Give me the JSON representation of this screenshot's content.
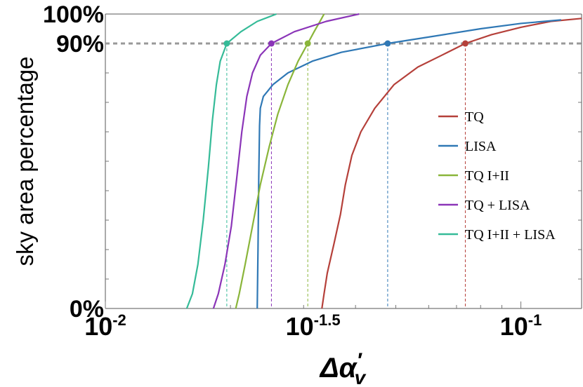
{
  "chart_data": {
    "type": "line",
    "xscale": "log",
    "xlim": [
      0.01,
      0.14
    ],
    "ylim": [
      0,
      100
    ],
    "xlabel_main": "Δα",
    "xlabel_prime": "′",
    "xlabel_sub": "v",
    "ylabel": "sky area percentage",
    "x_ticks": [
      {
        "value": 0.01,
        "base": "10",
        "exp": "-2"
      },
      {
        "value": 0.0316,
        "base": "10",
        "exp": "-1.5"
      },
      {
        "value": 0.1,
        "base": "10",
        "exp": "-1"
      }
    ],
    "y_ticks": [
      {
        "value": 0,
        "label": "0%"
      },
      {
        "value": 90,
        "label": "90%"
      },
      {
        "value": 100,
        "label": "100%"
      }
    ],
    "reference_line": {
      "y": 90,
      "color": "#999999"
    },
    "legend_position": "right",
    "series": [
      {
        "name": "TQ",
        "color": "#b5403a",
        "marker": {
          "x": 0.0735,
          "y": 90
        },
        "points": [
          [
            0.0332,
            0
          ],
          [
            0.0336,
            5
          ],
          [
            0.0342,
            12
          ],
          [
            0.0355,
            22
          ],
          [
            0.0368,
            32
          ],
          [
            0.0378,
            42
          ],
          [
            0.0392,
            52
          ],
          [
            0.0412,
            60
          ],
          [
            0.0445,
            68
          ],
          [
            0.0495,
            76
          ],
          [
            0.0565,
            82
          ],
          [
            0.0645,
            86
          ],
          [
            0.0735,
            90
          ],
          [
            0.085,
            93
          ],
          [
            0.1,
            95.5
          ],
          [
            0.118,
            97.5
          ],
          [
            0.14,
            98.5
          ]
        ]
      },
      {
        "name": "LISA",
        "color": "#2f78b5",
        "marker": {
          "x": 0.0478,
          "y": 90
        },
        "points": [
          [
            0.0232,
            0
          ],
          [
            0.0233,
            20
          ],
          [
            0.0234,
            45
          ],
          [
            0.0235,
            62
          ],
          [
            0.0236,
            68
          ],
          [
            0.024,
            72
          ],
          [
            0.0253,
            76
          ],
          [
            0.0275,
            80
          ],
          [
            0.0315,
            84
          ],
          [
            0.037,
            87
          ],
          [
            0.0478,
            90
          ],
          [
            0.062,
            92.5
          ],
          [
            0.08,
            95
          ],
          [
            0.1,
            96.8
          ],
          [
            0.125,
            98
          ]
        ]
      },
      {
        "name": "TQ I+II",
        "color": "#8ab53a",
        "marker": {
          "x": 0.0307,
          "y": 90
        },
        "points": [
          [
            0.0206,
            0
          ],
          [
            0.021,
            5
          ],
          [
            0.0217,
            15
          ],
          [
            0.0226,
            28
          ],
          [
            0.0236,
            42
          ],
          [
            0.0248,
            55
          ],
          [
            0.026,
            66
          ],
          [
            0.0275,
            76
          ],
          [
            0.0291,
            84
          ],
          [
            0.0307,
            90
          ],
          [
            0.0318,
            94
          ],
          [
            0.033,
            98
          ],
          [
            0.0336,
            100
          ]
        ]
      },
      {
        "name": "TQ + LISA",
        "color": "#8b35b8",
        "marker": {
          "x": 0.0251,
          "y": 90
        },
        "points": [
          [
            0.0182,
            0
          ],
          [
            0.0187,
            5
          ],
          [
            0.0194,
            15
          ],
          [
            0.0201,
            28
          ],
          [
            0.0207,
            44
          ],
          [
            0.0213,
            60
          ],
          [
            0.0219,
            72
          ],
          [
            0.0226,
            80
          ],
          [
            0.0236,
            86
          ],
          [
            0.0251,
            90
          ],
          [
            0.0285,
            94
          ],
          [
            0.034,
            97.5
          ],
          [
            0.0408,
            100
          ]
        ]
      },
      {
        "name": "TQ I+II + LISA",
        "color": "#35bb98",
        "marker": {
          "x": 0.0196,
          "y": 90
        },
        "points": [
          [
            0.0157,
            0
          ],
          [
            0.0162,
            5
          ],
          [
            0.0167,
            15
          ],
          [
            0.0172,
            30
          ],
          [
            0.0177,
            48
          ],
          [
            0.0181,
            64
          ],
          [
            0.0185,
            76
          ],
          [
            0.0189,
            84
          ],
          [
            0.0196,
            90
          ],
          [
            0.0212,
            94
          ],
          [
            0.0232,
            97.5
          ],
          [
            0.0258,
            100
          ]
        ]
      }
    ]
  }
}
